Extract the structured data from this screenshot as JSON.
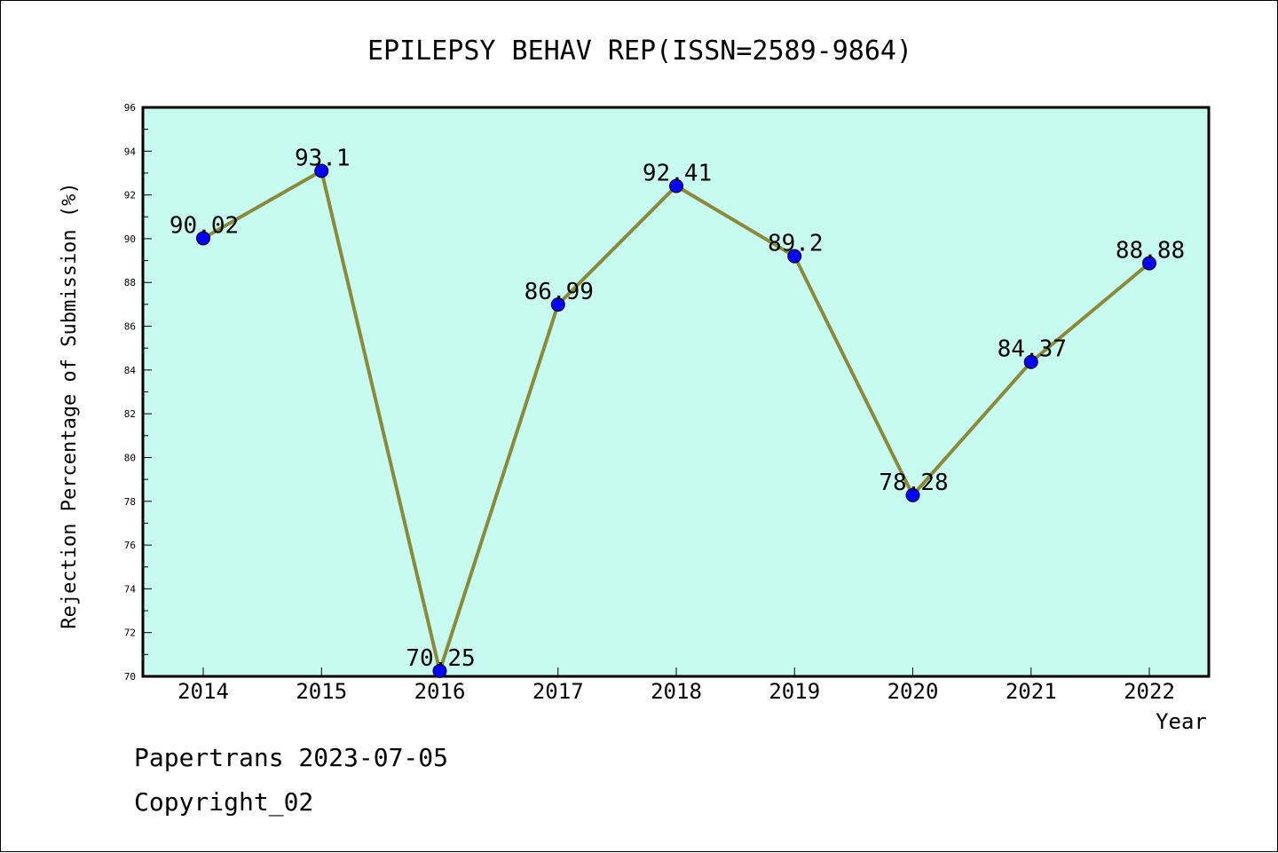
{
  "chart_data": {
    "type": "line",
    "title": "EPILEPSY BEHAV REP(ISSN=2589-9864)",
    "xlabel": "Year",
    "ylabel": "Rejection Percentage of Submission (%)",
    "categories": [
      "2014",
      "2015",
      "2016",
      "2017",
      "2018",
      "2019",
      "2020",
      "2021",
      "2022"
    ],
    "series": [
      {
        "values": [
          90.02,
          93.1,
          70.25,
          86.99,
          92.41,
          89.2,
          78.28,
          84.37,
          88.88
        ],
        "labels": [
          "90.02",
          "93.1",
          "70.25",
          "86.99",
          "92.41",
          "89.2",
          "78.28",
          "84.37",
          "88.88"
        ]
      }
    ],
    "ylim": [
      70,
      96
    ],
    "yticks": [
      "70",
      "72",
      "74",
      "76",
      "78",
      "80",
      "82",
      "84",
      "86",
      "88",
      "90",
      "92",
      "94",
      "96"
    ],
    "grid": false,
    "colors": {
      "plot_background": "#c8fbef",
      "line": "#8b8a3a",
      "marker": "#0000ff"
    }
  },
  "footer": {
    "line1": "Papertrans 2023-07-05",
    "line2": "Copyright_02"
  }
}
